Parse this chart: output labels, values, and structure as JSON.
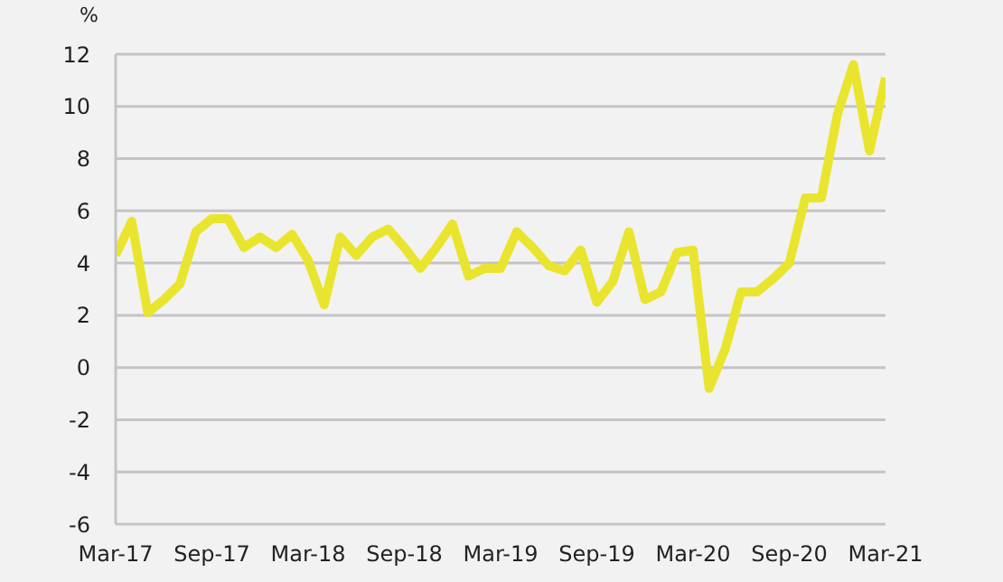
{
  "chart_data": {
    "type": "line",
    "ylabel": "%",
    "x": [
      "2017-03",
      "2017-04",
      "2017-05",
      "2017-06",
      "2017-07",
      "2017-08",
      "2017-09",
      "2017-10",
      "2017-11",
      "2017-12",
      "2018-01",
      "2018-02",
      "2018-03",
      "2018-04",
      "2018-05",
      "2018-06",
      "2018-07",
      "2018-08",
      "2018-09",
      "2018-10",
      "2018-11",
      "2018-12",
      "2019-01",
      "2019-02",
      "2019-03",
      "2019-04",
      "2019-05",
      "2019-06",
      "2019-07",
      "2019-08",
      "2019-09",
      "2019-10",
      "2019-11",
      "2019-12",
      "2020-01",
      "2020-02",
      "2020-03",
      "2020-04",
      "2020-05",
      "2020-06",
      "2020-07",
      "2020-08",
      "2020-09",
      "2020-10",
      "2020-11",
      "2020-12",
      "2021-01",
      "2021-02",
      "2021-03"
    ],
    "series": [
      {
        "color": "#e9e52e",
        "values": [
          4.3,
          5.6,
          2.1,
          2.6,
          3.2,
          5.2,
          5.7,
          5.7,
          4.6,
          5.0,
          4.6,
          5.1,
          4.1,
          2.4,
          5.0,
          4.3,
          5.0,
          5.3,
          4.6,
          3.8,
          4.6,
          5.5,
          3.5,
          3.8,
          3.8,
          5.2,
          4.6,
          3.9,
          3.7,
          4.5,
          2.5,
          3.3,
          5.2,
          2.6,
          2.9,
          4.4,
          4.5,
          -0.8,
          0.7,
          2.9,
          2.9,
          3.4,
          4.0,
          6.5,
          6.5,
          9.7,
          11.6,
          8.3,
          11.1
        ]
      }
    ],
    "xlim": [
      "2017-03",
      "2021-03"
    ],
    "xticks": [
      {
        "value": "2017-03",
        "label": "Mar-17"
      },
      {
        "value": "2017-09",
        "label": "Sep-17"
      },
      {
        "value": "2018-03",
        "label": "Mar-18"
      },
      {
        "value": "2018-09",
        "label": "Sep-18"
      },
      {
        "value": "2019-03",
        "label": "Mar-19"
      },
      {
        "value": "2019-09",
        "label": "Sep-19"
      },
      {
        "value": "2020-03",
        "label": "Mar-20"
      },
      {
        "value": "2020-09",
        "label": "Sep-20"
      },
      {
        "value": "2021-03",
        "label": "Mar-21"
      }
    ],
    "ylim": [
      -6,
      12
    ],
    "yticks": [
      -6,
      -4,
      -2,
      0,
      2,
      4,
      6,
      8,
      10,
      12
    ],
    "grid": "y",
    "marker": "none",
    "line_style": "solid"
  }
}
